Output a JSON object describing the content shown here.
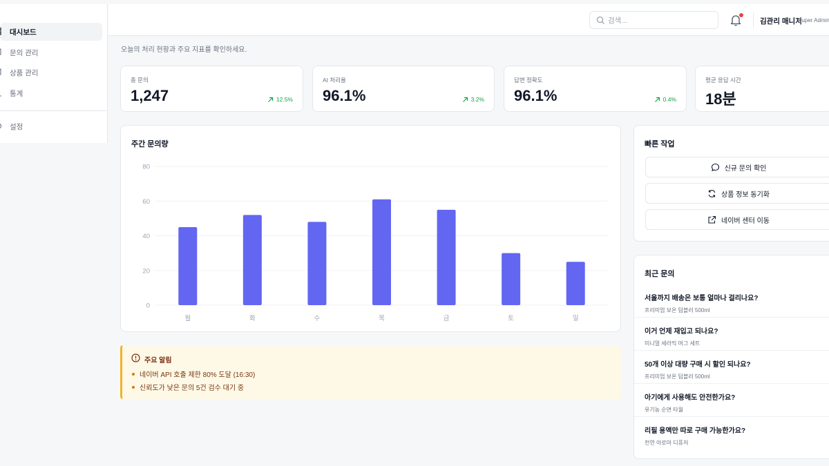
{
  "sidebar": {
    "items": [
      {
        "label": "대시보드",
        "active": true,
        "icon": "grid-icon"
      },
      {
        "label": "문의 관리",
        "icon": "chat-icon"
      },
      {
        "label": "상품 관리",
        "icon": "box-icon"
      },
      {
        "label": "통계",
        "icon": "chart-icon"
      },
      {
        "label": "설정",
        "icon": "gear-icon"
      }
    ]
  },
  "header": {
    "search_placeholder": "검색...",
    "user_name": "김관리 매니저",
    "user_role": "Super Admin"
  },
  "page": {
    "subtitle": "오늘의 처리 현황과 주요 지표를 확인하세요."
  },
  "stats": [
    {
      "label": "총 문의",
      "value": "1,247",
      "change": "12.5%"
    },
    {
      "label": "AI 처리율",
      "value": "96.1%",
      "change": "3.2%"
    },
    {
      "label": "답변 정확도",
      "value": "96.1%",
      "change": "0.4%"
    },
    {
      "label": "평균 응답 시간",
      "value": "18분",
      "change": ""
    }
  ],
  "chart_data": {
    "type": "bar",
    "title": "주간 문의량",
    "categories": [
      "월",
      "화",
      "수",
      "목",
      "금",
      "토",
      "일"
    ],
    "values": [
      45,
      52,
      48,
      61,
      55,
      30,
      25
    ],
    "ylim": [
      0,
      80
    ],
    "yticks": [
      0,
      20,
      40,
      60,
      80
    ],
    "grid": true,
    "color": "#6366f1"
  },
  "quick_actions": {
    "title": "빠른 작업",
    "buttons": [
      {
        "label": "신규 문의 확인",
        "icon": "chat-bubble-icon"
      },
      {
        "label": "상품 정보 동기화",
        "icon": "refresh-icon"
      },
      {
        "label": "네이버 센터 이동",
        "icon": "external-link-icon"
      }
    ]
  },
  "recent": {
    "title": "최근 문의",
    "items": [
      {
        "question": "서울까지 배송은 보통 얼마나 걸리나요?",
        "product": "프리미엄 보온 텀블러 500ml"
      },
      {
        "question": "이거 언제 재입고 되나요?",
        "product": "미니멀 세라믹 머그 세트"
      },
      {
        "question": "50개 이상 대량 구매 시 할인 되나요?",
        "product": "프리미엄 보온 텀블러 500ml"
      },
      {
        "question": "아기에게 사용해도 안전한가요?",
        "product": "유기농 순면 타월"
      },
      {
        "question": "리필 용액만 따로 구매 가능한가요?",
        "product": "천연 아로마 디퓨저"
      }
    ]
  },
  "alert": {
    "title": "주요 알림",
    "items": [
      "네이버 API 호출 제한 80% 도달 (16:30)",
      "신뢰도가 낮은 문의 5건 검수 대기 중"
    ]
  },
  "colors": {
    "accent": "#6366f1",
    "positive": "#16a34a",
    "alert_border": "#f0b429",
    "alert_bg": "#fef9e7",
    "notification": "#ef4444"
  }
}
